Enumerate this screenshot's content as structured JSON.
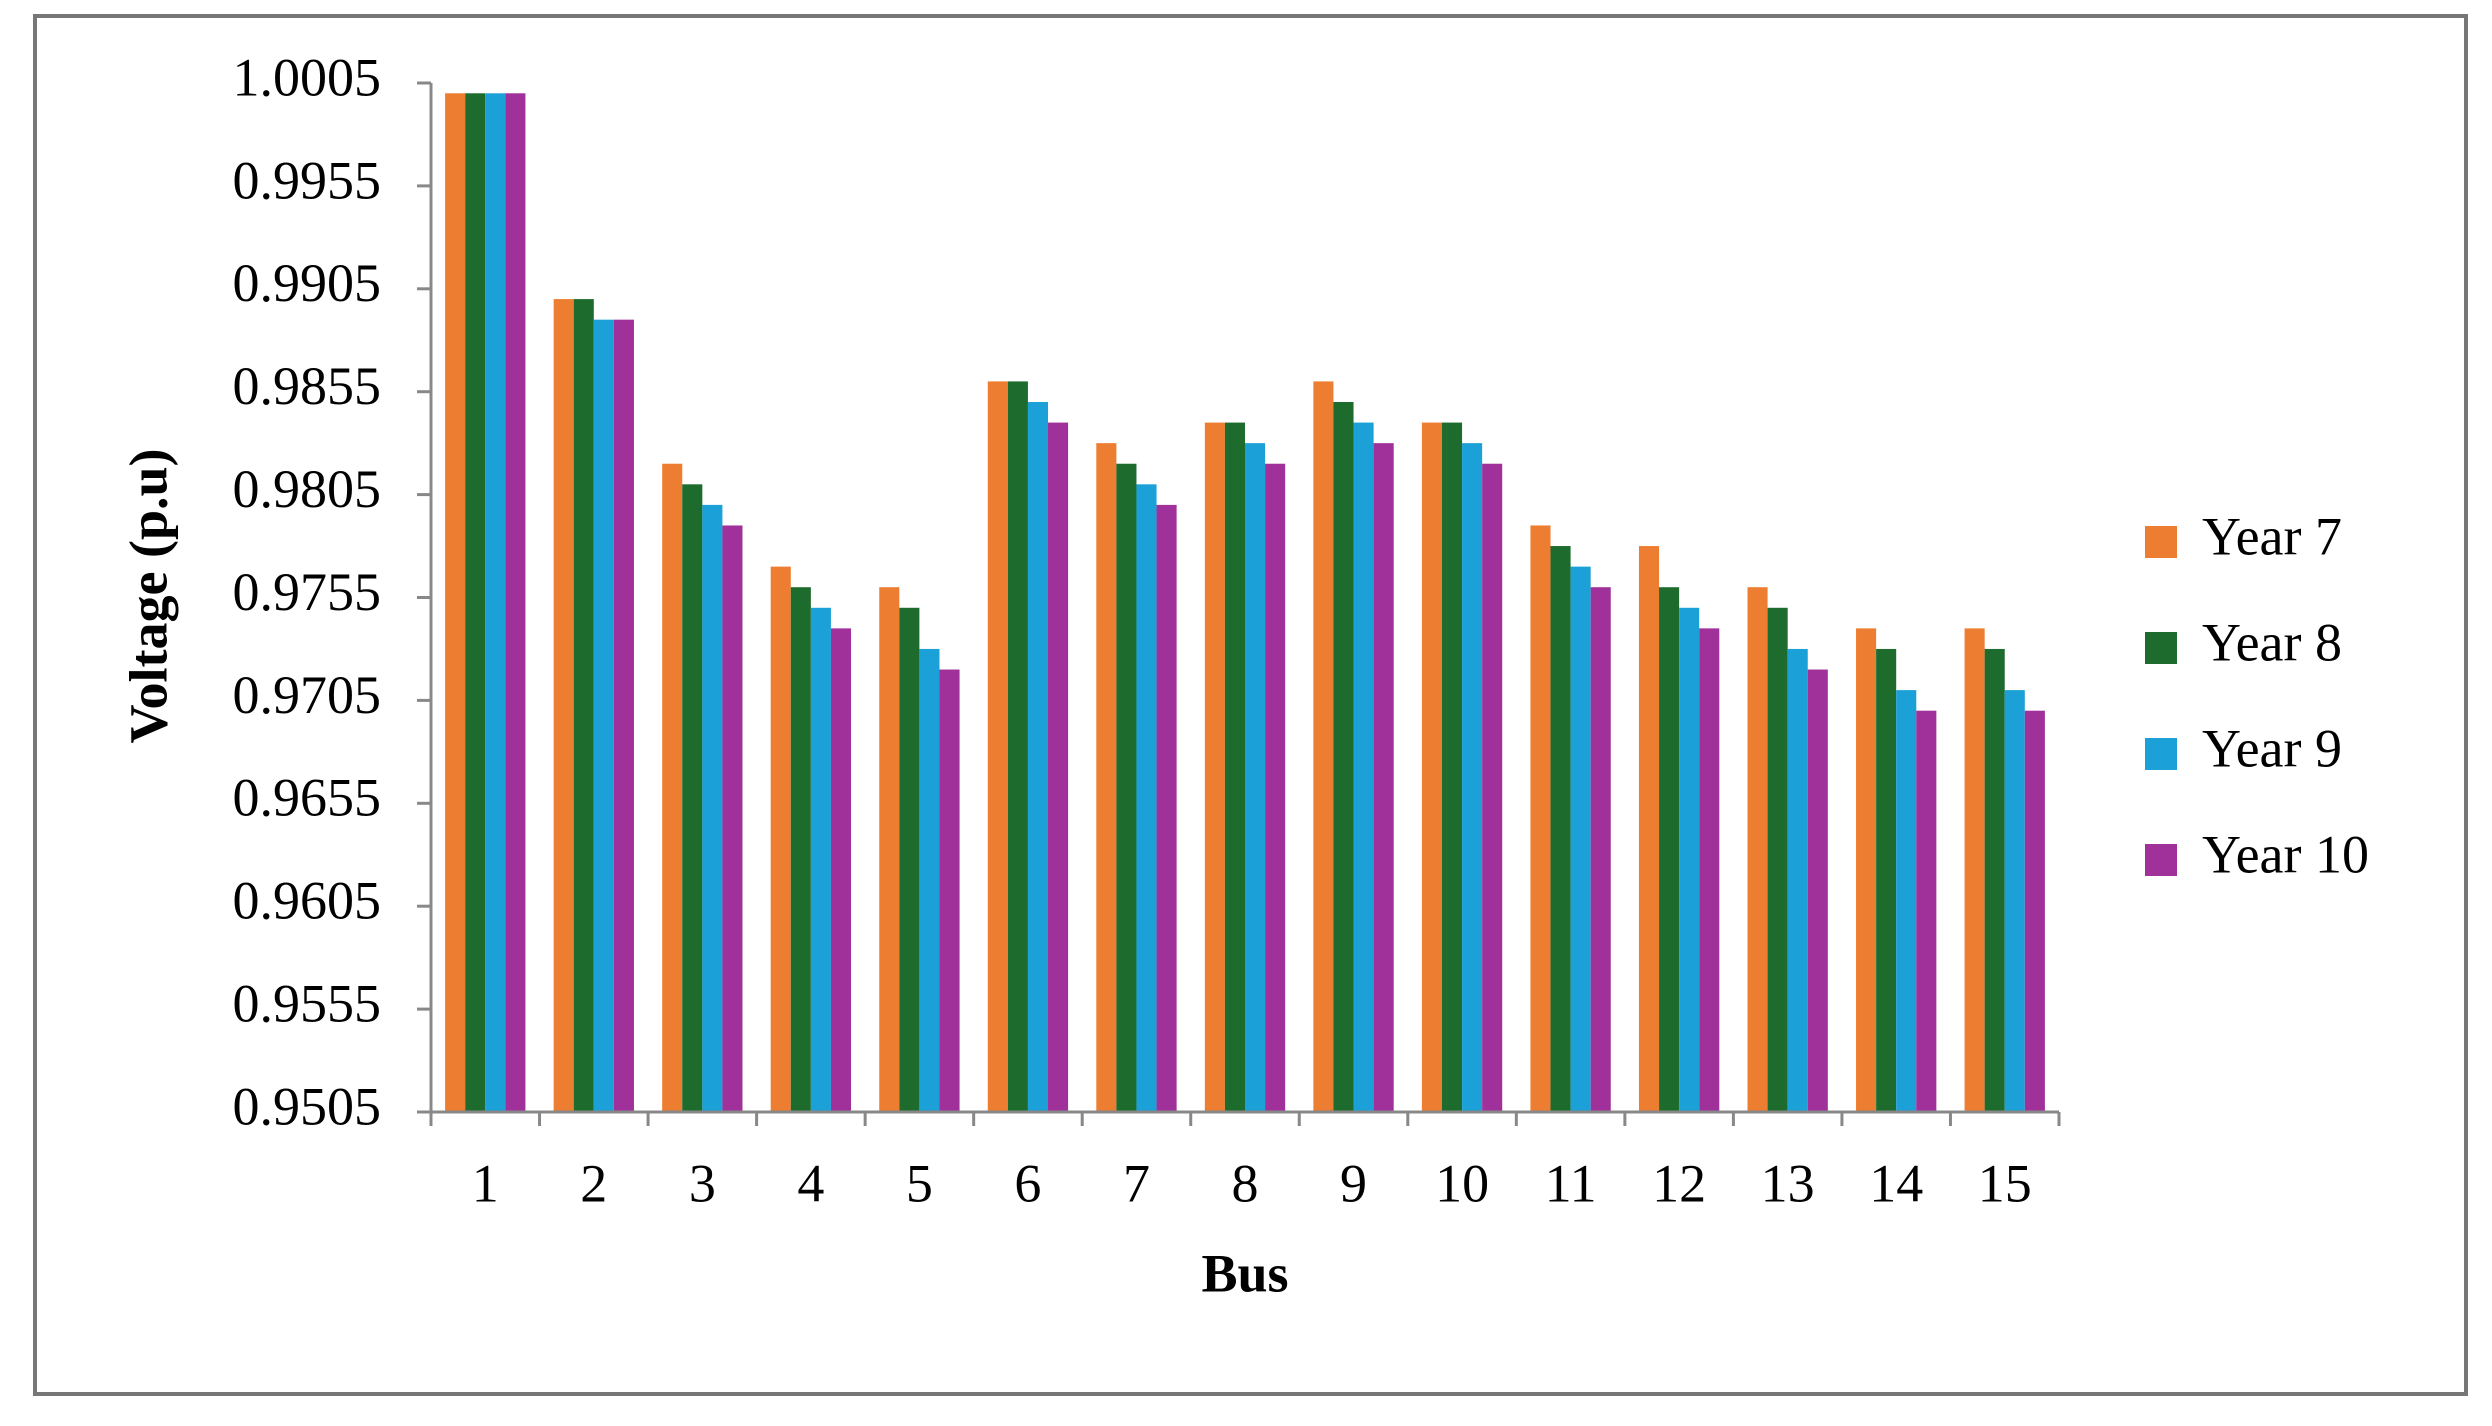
{
  "chart_data": {
    "type": "bar",
    "x_label": "Bus",
    "y_label": "Voltage (p.u)",
    "categories": [
      "1",
      "2",
      "3",
      "4",
      "5",
      "6",
      "7",
      "8",
      "9",
      "10",
      "11",
      "12",
      "13",
      "14",
      "15"
    ],
    "series": [
      {
        "name": "Year 7",
        "color": "#ed7d31",
        "values": [
          1.0,
          0.99,
          0.982,
          0.977,
          0.976,
          0.986,
          0.983,
          0.984,
          0.986,
          0.984,
          0.979,
          0.978,
          0.976,
          0.974,
          0.974
        ]
      },
      {
        "name": "Year 8",
        "color": "#1e6b2e",
        "values": [
          1.0,
          0.99,
          0.981,
          0.976,
          0.975,
          0.986,
          0.982,
          0.984,
          0.985,
          0.984,
          0.978,
          0.976,
          0.975,
          0.973,
          0.973
        ]
      },
      {
        "name": "Year 9",
        "color": "#1ba1d8",
        "values": [
          1.0,
          0.989,
          0.98,
          0.975,
          0.973,
          0.985,
          0.981,
          0.983,
          0.984,
          0.983,
          0.977,
          0.975,
          0.973,
          0.971,
          0.971
        ]
      },
      {
        "name": "Year 10",
        "color": "#a0309a",
        "values": [
          1.0,
          0.989,
          0.979,
          0.974,
          0.972,
          0.984,
          0.98,
          0.982,
          0.983,
          0.982,
          0.976,
          0.974,
          0.972,
          0.97,
          0.97
        ]
      }
    ],
    "ylim": [
      0.9505,
      1.0005
    ],
    "yticks": [
      0.9505,
      0.9555,
      0.9605,
      0.9655,
      0.9705,
      0.9755,
      0.9805,
      0.9855,
      0.9905,
      0.9955,
      1.0005
    ],
    "grid": false,
    "legend": "right"
  }
}
